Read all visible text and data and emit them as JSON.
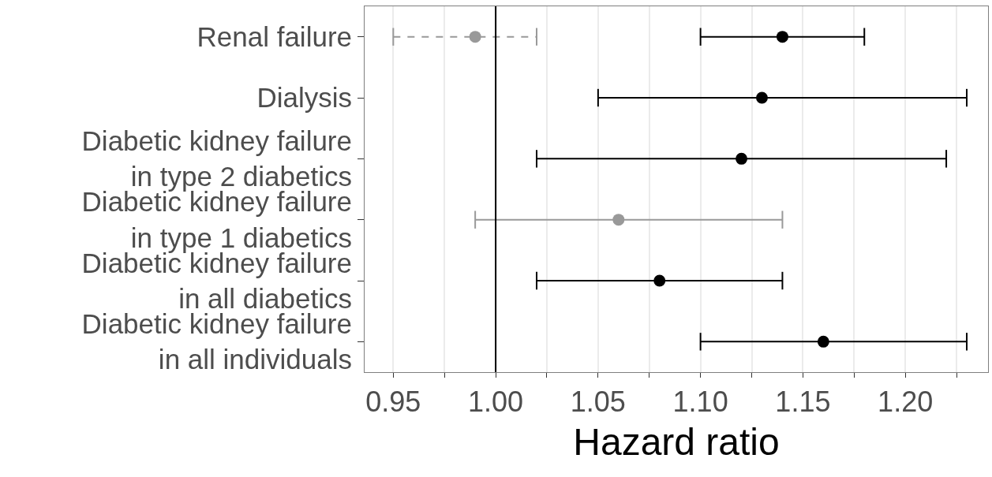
{
  "chart_data": {
    "type": "scatter",
    "orientation": "horizontal",
    "xlabel": "Hazard ratio",
    "categories": [
      "Renal failure",
      "Dialysis",
      "Diabetic kidney failure\nin type 2 diabetics",
      "Diabetic kidney failure\nin type 1 diabetics",
      "Diabetic kidney failure\nin all diabetics",
      "Diabetic kidney failure\nin all individuals"
    ],
    "series": [
      {
        "color": "#000000",
        "line_style": "solid",
        "values": [
          1.14,
          1.13,
          1.12,
          null,
          1.08,
          1.16
        ],
        "errors": [
          [
            1.1,
            1.18
          ],
          [
            1.05,
            1.23
          ],
          [
            1.02,
            1.22
          ],
          null,
          [
            1.02,
            1.14
          ],
          [
            1.1,
            1.23
          ]
        ]
      },
      {
        "color": "#999999",
        "line_style": "dashed",
        "values": [
          0.99,
          null,
          null,
          null,
          null,
          null
        ],
        "errors": [
          [
            0.95,
            1.02
          ],
          null,
          null,
          null,
          null,
          null
        ]
      },
      {
        "color": "#999999",
        "line_style": "solid",
        "values": [
          null,
          null,
          null,
          1.06,
          null,
          null
        ],
        "errors": [
          null,
          null,
          null,
          [
            0.99,
            1.14
          ],
          null,
          null
        ]
      }
    ],
    "marker": "circle",
    "xlim": [
      0.936,
      1.2404
    ],
    "xticks": [
      0.95,
      {
        "value": 0.975,
        "label": null
      },
      {
        "value": 1.0,
        "label": "1.00"
      },
      {
        "value": 1.025,
        "label": null
      },
      1.05,
      {
        "value": 1.075,
        "label": null
      },
      {
        "value": 1.1,
        "label": "1.10"
      },
      {
        "value": 1.125,
        "label": null
      },
      1.15,
      {
        "value": 1.175,
        "label": null
      },
      {
        "value": 1.2,
        "label": "1.20"
      },
      {
        "value": 1.225,
        "label": null
      }
    ],
    "grid": "x",
    "ref_lines": [
      {
        "axis": "x",
        "value": 1.0,
        "color": "#000000"
      }
    ]
  }
}
